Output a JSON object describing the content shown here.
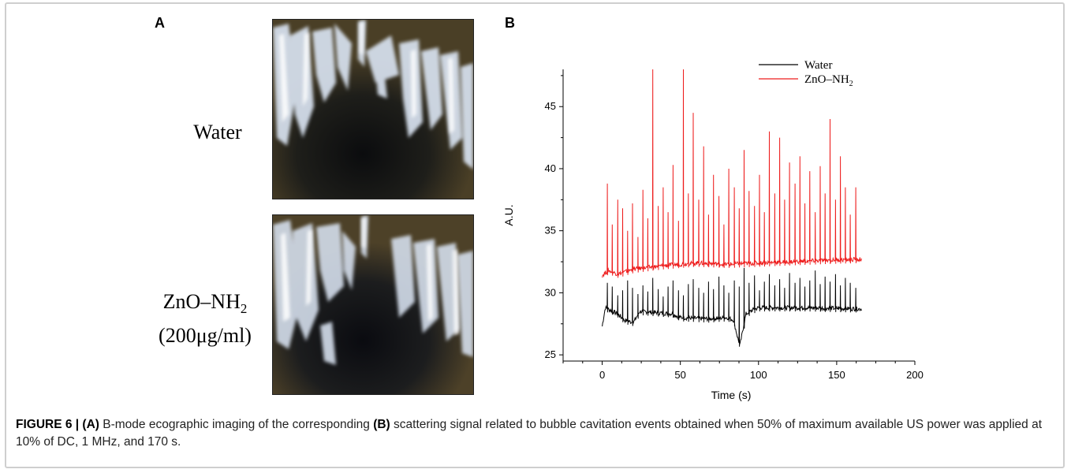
{
  "panels": {
    "a_label": "A",
    "b_label": "B"
  },
  "panel_a": {
    "image1_label": "Water",
    "image2_label_line1_main": "ZnO–NH",
    "image2_label_line1_sub": "2",
    "image2_label_line2": "(200μg/ml)"
  },
  "chart_data": {
    "type": "line",
    "xlabel": "Time (s)",
    "ylabel": "A.U.",
    "xlim": [
      -25,
      200
    ],
    "ylim": [
      24.5,
      48
    ],
    "x_ticks": [
      0,
      50,
      100,
      150,
      200
    ],
    "y_ticks": [
      25,
      30,
      35,
      40,
      45
    ],
    "legend_placement": "top-right",
    "series": [
      {
        "name": "Water",
        "color": "#000000",
        "baseline": [
          [
            0,
            27.3
          ],
          [
            2,
            28.8
          ],
          [
            10,
            28.3
          ],
          [
            14,
            27.8
          ],
          [
            20,
            27.6
          ],
          [
            24,
            28.5
          ],
          [
            45,
            28.3
          ],
          [
            50,
            28.0
          ],
          [
            68,
            27.9
          ],
          [
            80,
            28.0
          ],
          [
            84,
            27.8
          ],
          [
            88,
            25.7
          ],
          [
            92,
            28.3
          ],
          [
            96,
            28.6
          ],
          [
            100,
            28.8
          ],
          [
            130,
            28.8
          ],
          [
            166,
            28.7
          ]
        ],
        "spike_tops": [
          30.8,
          30.5,
          29.8,
          30.2,
          31.0,
          30.4,
          29.9,
          30.6,
          30.1,
          31.2,
          30.3,
          29.7,
          30.5,
          31.0,
          30.2,
          29.8,
          30.7,
          31.1,
          30.4,
          30.0,
          30.9,
          30.3,
          31.3,
          30.6,
          30.0,
          31.0,
          30.5,
          32.0,
          30.8,
          31.4,
          30.2,
          30.9,
          31.5,
          30.6,
          31.1,
          30.4,
          31.6,
          30.8,
          31.2,
          30.5,
          31.0,
          31.8,
          30.7,
          31.3,
          30.9,
          31.5,
          30.6,
          31.2,
          30.8,
          30.4
        ]
      },
      {
        "name": "ZnO–NH",
        "name_sub": "2",
        "color": "#ee1c1c",
        "baseline": [
          [
            0,
            31.4
          ],
          [
            4,
            31.8
          ],
          [
            10,
            31.5
          ],
          [
            20,
            31.9
          ],
          [
            40,
            32.2
          ],
          [
            60,
            32.4
          ],
          [
            80,
            32.3
          ],
          [
            100,
            32.4
          ],
          [
            120,
            32.5
          ],
          [
            140,
            32.6
          ],
          [
            166,
            32.7
          ]
        ],
        "spike_tops": [
          38.8,
          35.5,
          37.5,
          36.8,
          35.0,
          37.2,
          34.5,
          38.3,
          36.0,
          48.0,
          37.0,
          38.5,
          36.5,
          40.3,
          35.8,
          48.0,
          38.0,
          44.5,
          37.5,
          41.8,
          36.3,
          39.5,
          37.8,
          35.5,
          40.0,
          38.5,
          36.8,
          41.5,
          38.2,
          37.0,
          39.5,
          36.5,
          43.0,
          38.0,
          42.5,
          37.5,
          40.5,
          38.8,
          41.0,
          37.2,
          39.8,
          36.5,
          40.2,
          38.0,
          44.0,
          37.5,
          41.0,
          38.5,
          36.3,
          38.5
        ]
      }
    ]
  },
  "caption": {
    "lead": "FIGURE 6 | (A)",
    "part1": " B-mode ecographic imaging of the corresponding ",
    "b": "(B)",
    "part2": " scattering signal related to bubble cavitation events obtained when 50% of maximum available US power was applied at 10% of DC, 1 MHz, and 170 s."
  }
}
